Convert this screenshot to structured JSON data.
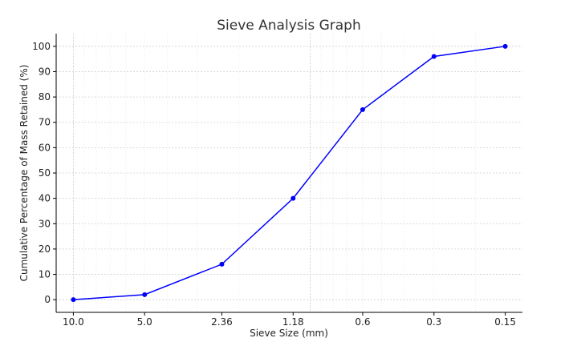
{
  "chart_data": {
    "type": "line",
    "title": "Sieve Analysis Graph",
    "xlabel": "Sieve Size (mm)",
    "ylabel": "Cumulative Percentage of Mass Retained (%)",
    "categories": [
      "10.0",
      "5.0",
      "2.36",
      "1.18",
      "0.6",
      "0.3",
      "0.15"
    ],
    "x": [
      10.0,
      5.0,
      2.36,
      1.18,
      0.6,
      0.3,
      0.15
    ],
    "x_scale": "log",
    "x_reversed": true,
    "series": [
      {
        "values": [
          0,
          2,
          14,
          40,
          75,
          96,
          100
        ]
      }
    ],
    "ylim": [
      -5,
      105
    ],
    "yticks": [
      0,
      10,
      20,
      30,
      40,
      50,
      60,
      70,
      80,
      90,
      100
    ],
    "grid": true,
    "line_color": "#0000ff",
    "marker_color": "#0000ff"
  }
}
